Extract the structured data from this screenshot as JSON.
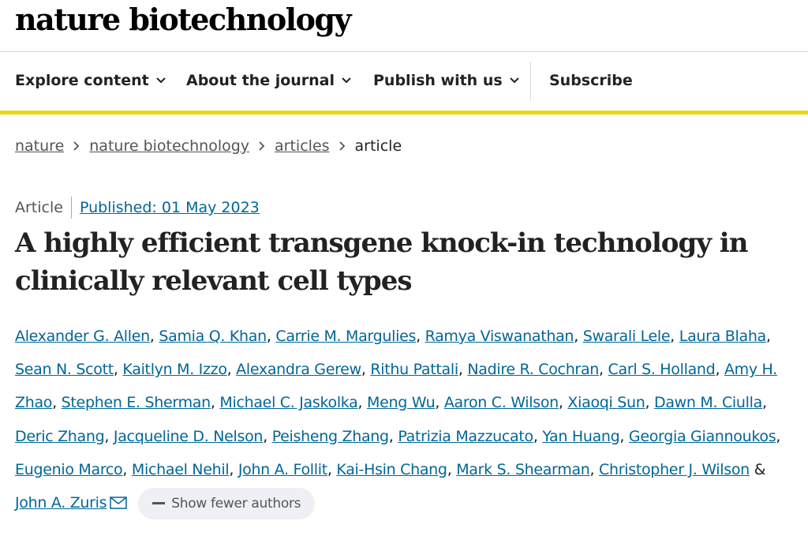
{
  "header": {
    "logo": "nature biotechnology"
  },
  "nav": {
    "items": [
      "Explore content",
      "About the journal",
      "Publish with us"
    ],
    "subscribe": "Subscribe"
  },
  "breadcrumb": [
    "nature",
    "nature biotechnology",
    "articles",
    "article"
  ],
  "article": {
    "type": "Article",
    "published": "Published: 01 May 2023",
    "title": "A highly efficient transgene knock-in technology in clinically relevant cell types",
    "authors": [
      "Alexander G. Allen",
      "Samia Q. Khan",
      "Carrie M. Margulies",
      "Ramya Viswanathan",
      "Swarali Lele",
      "Laura Blaha",
      "Sean N. Scott",
      "Kaitlyn M. Izzo",
      "Alexandra Gerew",
      "Rithu Pattali",
      "Nadire R. Cochran",
      "Carl S. Holland",
      "Amy H. Zhao",
      "Stephen E. Sherman",
      "Michael C. Jaskolka",
      "Meng Wu",
      "Aaron C. Wilson",
      "Xiaoqi Sun",
      "Dawn M. Ciulla",
      "Deric Zhang",
      "Jacqueline D. Nelson",
      "Peisheng Zhang",
      "Patrizia Mazzucato",
      "Yan Huang",
      "Georgia Giannoukos",
      "Eugenio Marco",
      "Michael Nehil",
      "John A. Follit",
      "Kai-Hsin Chang",
      "Mark S. Shearman",
      "Christopher J. Wilson",
      "John A. Zuris"
    ],
    "author_separator": ",",
    "last_separator": "&",
    "show_fewer": "Show fewer authors"
  }
}
